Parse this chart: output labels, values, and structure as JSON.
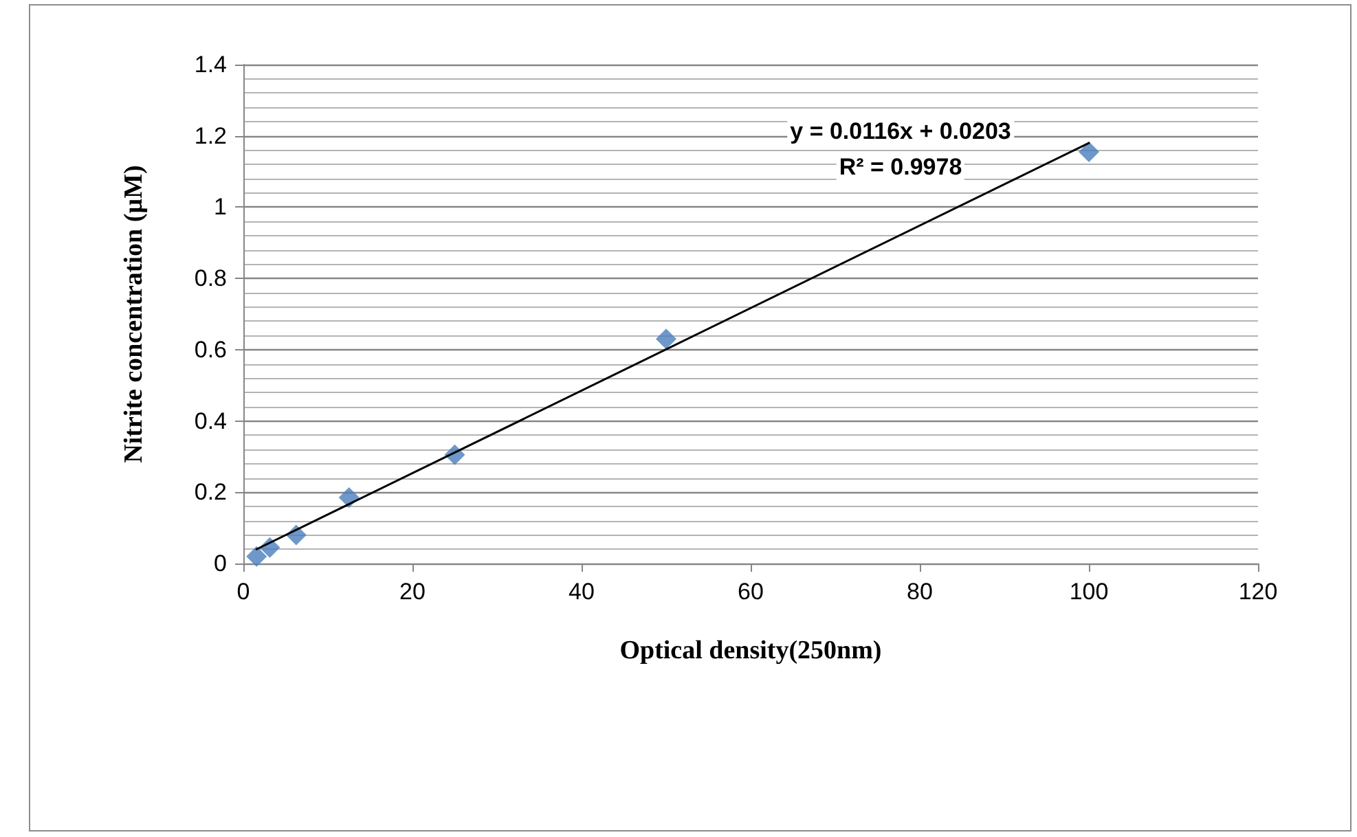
{
  "chart_data": {
    "type": "scatter",
    "xlabel": "Optical density(250nm)",
    "ylabel": "Nitrite concentration (µM)",
    "xlim": [
      0,
      120
    ],
    "xticks": [
      0,
      20,
      40,
      60,
      80,
      100,
      120
    ],
    "ylim": [
      0,
      1.4
    ],
    "yticks": [
      0,
      0.2,
      0.4,
      0.6,
      0.8,
      1,
      1.2,
      1.4
    ],
    "grid": "y",
    "marker": "diamond",
    "series": [
      {
        "type": "scatter",
        "color": "#4a7ebb",
        "x": [
          1.5625,
          3.125,
          6.25,
          12.5,
          25,
          50,
          100
        ],
        "values": [
          0.02,
          0.045,
          0.08,
          0.185,
          0.305,
          0.63,
          1.155
        ]
      },
      {
        "type": "line",
        "color": "#000000",
        "marker": "none",
        "line_style": "solid",
        "x": [
          1.5625,
          100
        ],
        "values": [
          0.04,
          1.18
        ]
      }
    ],
    "annotations": [
      "y = 0.0116x + 0.0203",
      "R² = 0.9978"
    ]
  }
}
